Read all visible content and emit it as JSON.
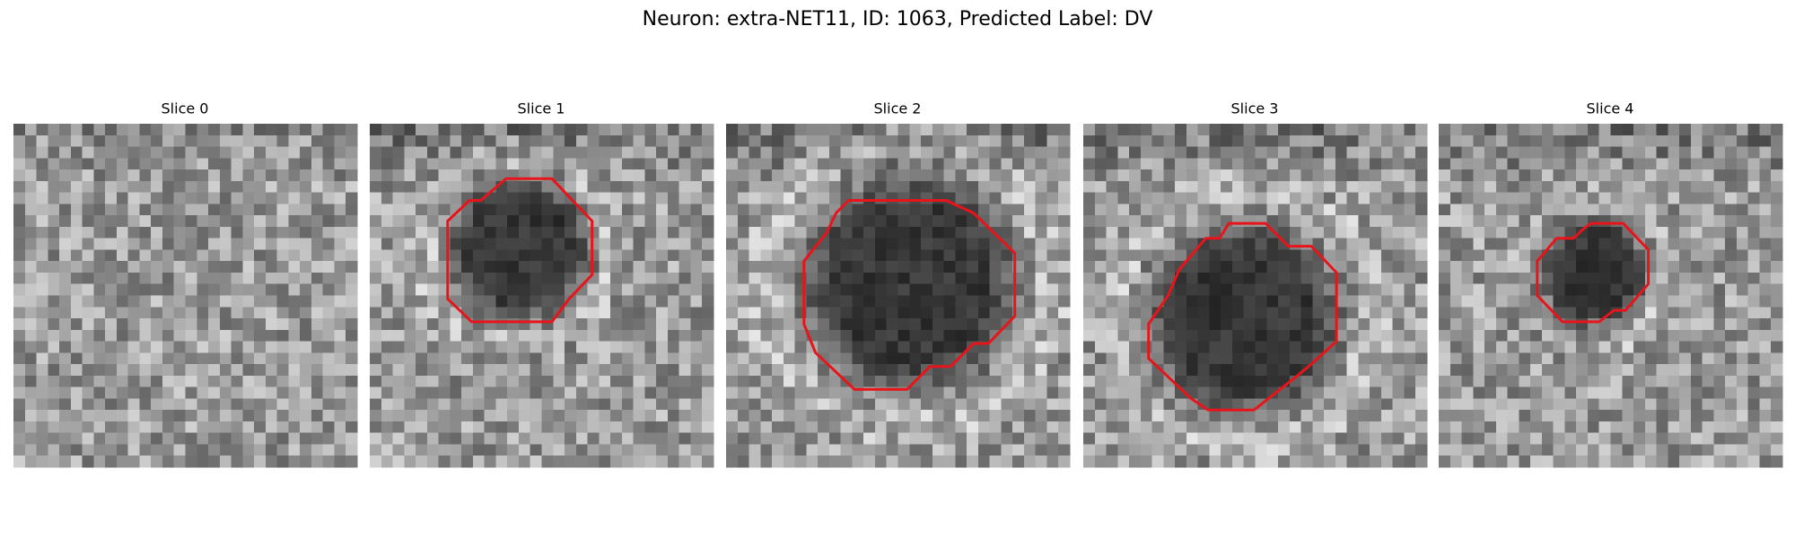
{
  "title": "Neuron: extra-NET11, ID: 1063, Predicted Label: DV",
  "panels": [
    {
      "title": "Slice 0"
    },
    {
      "title": "Slice 1"
    },
    {
      "title": "Slice 2"
    },
    {
      "title": "Slice 3"
    },
    {
      "title": "Slice 4"
    }
  ]
}
